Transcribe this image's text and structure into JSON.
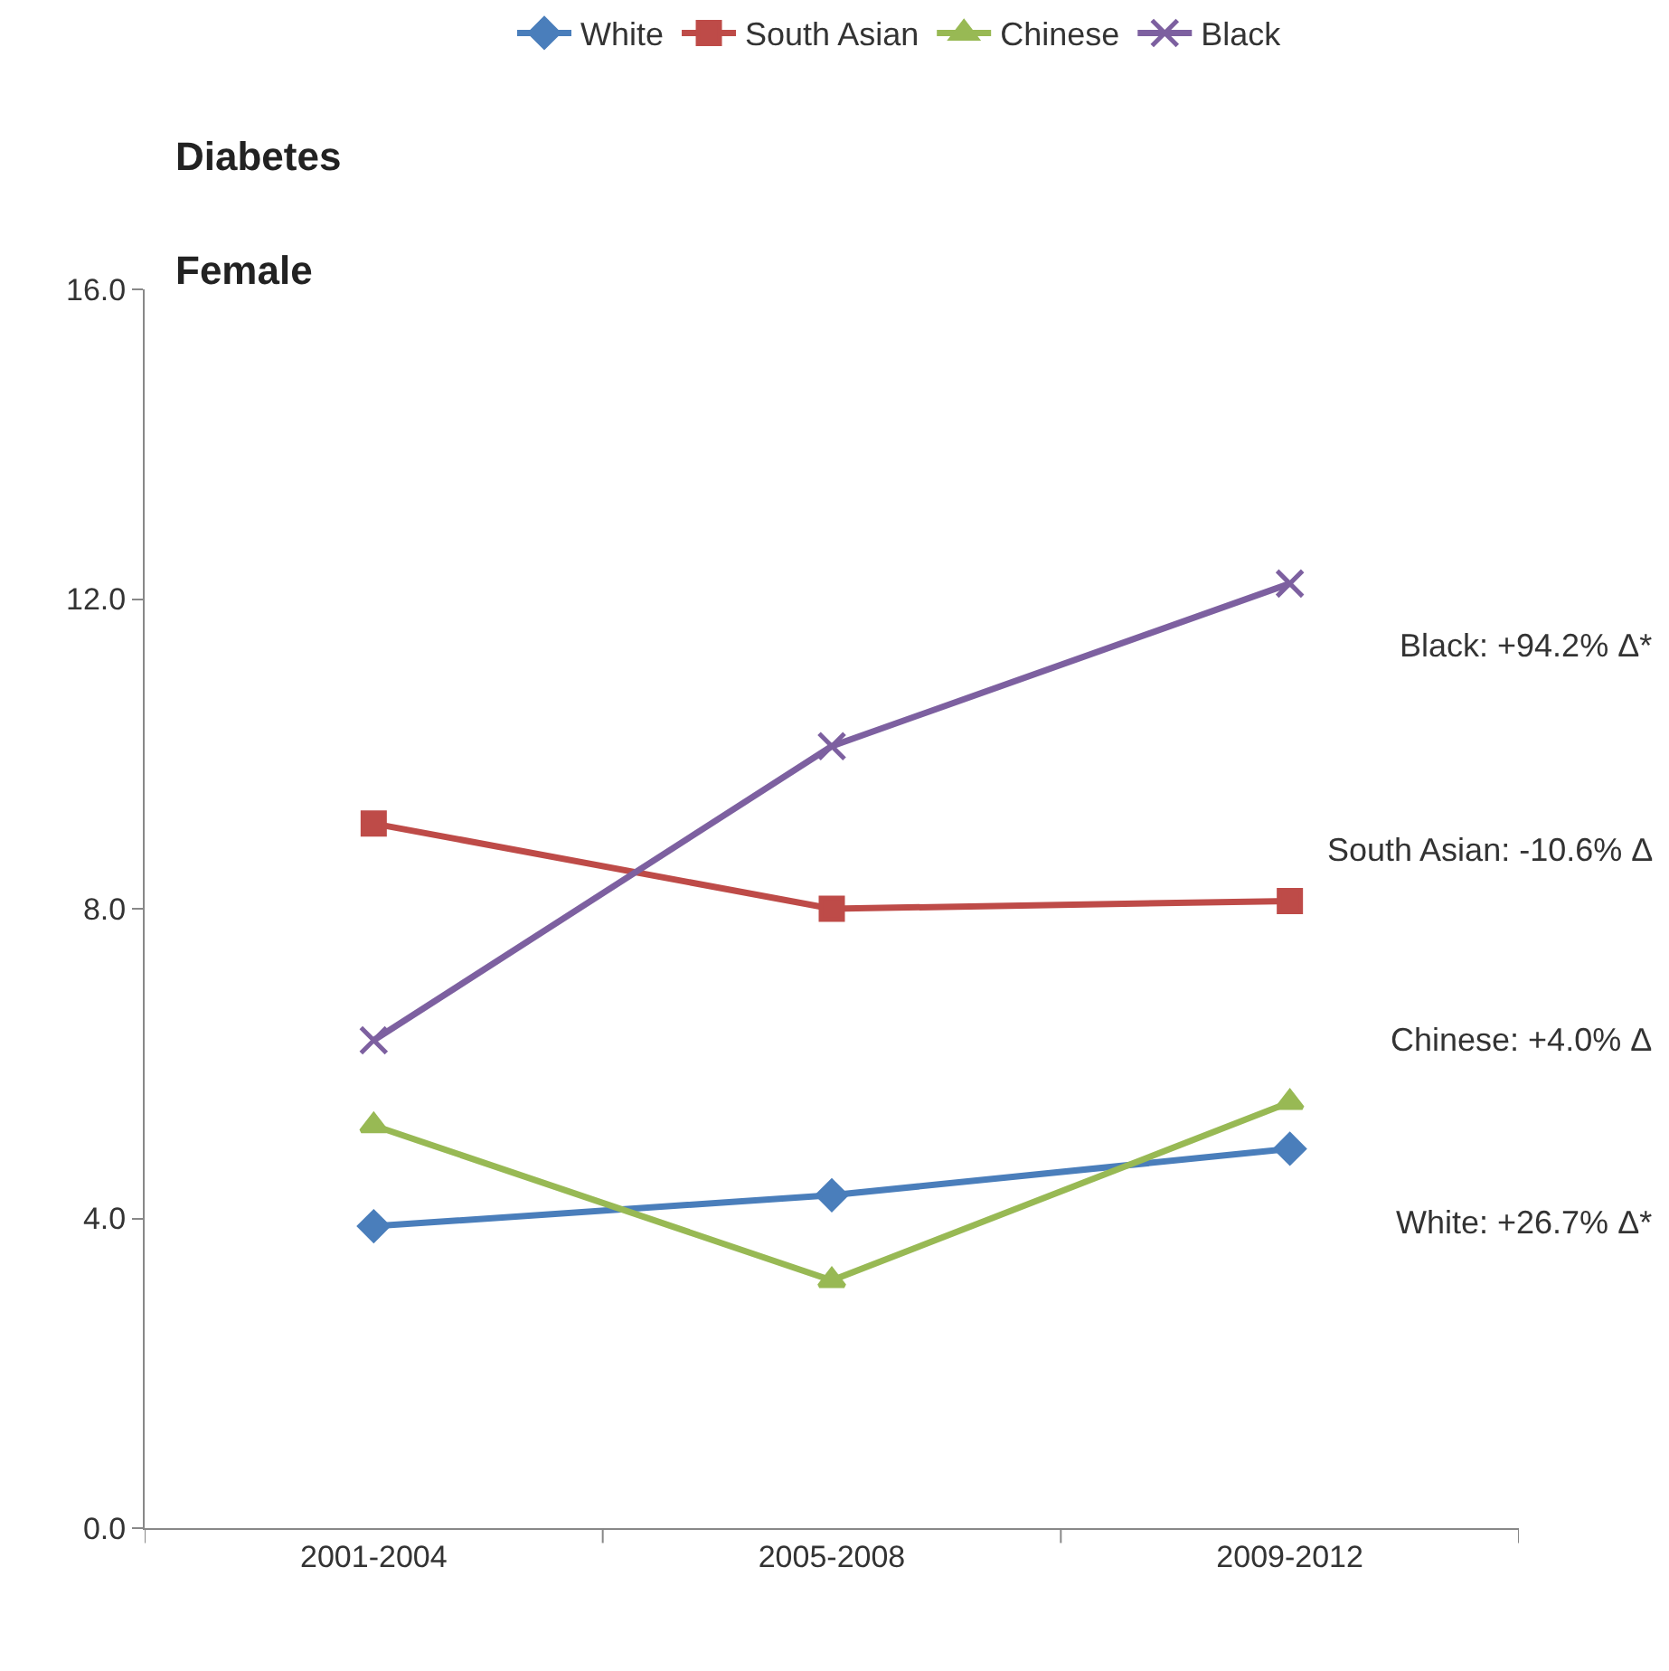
{
  "chart_data": {
    "type": "line",
    "title": "Diabetes",
    "subtitle": "Female",
    "categories": [
      "2001-2004",
      "2005-2008",
      "2009-2012"
    ],
    "series": [
      {
        "name": "White",
        "color": "#4a7ebb",
        "values": [
          3.9,
          4.3,
          4.9
        ],
        "marker": "diamond"
      },
      {
        "name": "South Asian",
        "color": "#be4b48",
        "values": [
          9.1,
          8.0,
          8.1
        ],
        "marker": "square"
      },
      {
        "name": "Chinese",
        "color": "#98b954",
        "values": [
          5.2,
          3.2,
          5.5
        ],
        "marker": "triangle"
      },
      {
        "name": "Black",
        "color": "#7d60a0",
        "values": [
          6.3,
          10.1,
          12.2
        ],
        "marker": "cross"
      }
    ],
    "ylim": [
      0,
      16
    ],
    "yticks": [
      {
        "value": 0,
        "label": "0.0"
      },
      {
        "value": 4,
        "label": "4.0"
      },
      {
        "value": 8,
        "label": "8.0"
      },
      {
        "value": 12,
        "label": "12.0"
      },
      {
        "value": 16,
        "label": "16.0"
      }
    ],
    "annotations": [
      "Black: +94.2% Δ*",
      "South Asian: -10.6% Δ",
      "Chinese: +4.0% Δ",
      "White: +26.7% Δ*"
    ],
    "legend": "top",
    "line_style": "solid"
  }
}
